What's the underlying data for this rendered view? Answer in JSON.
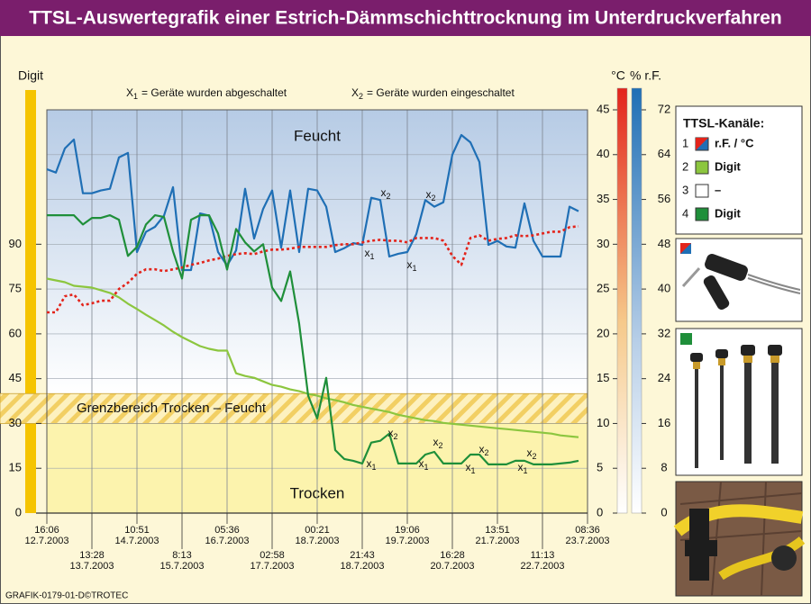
{
  "chart_data": {
    "type": "line",
    "title": "TTSL-Auswertegrafik einer Estrich-Dämmschichttrocknung im Unterdruckverfahren",
    "ylabel": "Digit",
    "y2label": "°C",
    "y3label": "% r.F.",
    "ylim": [
      0,
      135
    ],
    "yticks": [
      0,
      15,
      30,
      45,
      60,
      75,
      90
    ],
    "y2lim": [
      0,
      45
    ],
    "y2ticks": [
      0,
      5,
      10,
      15,
      20,
      25,
      30,
      35,
      40,
      45
    ],
    "y3lim": [
      0,
      72
    ],
    "y3ticks": [
      0,
      8,
      16,
      24,
      32,
      40,
      48,
      56,
      64,
      72
    ],
    "grid": true,
    "xticks": [
      {
        "time": "16:06",
        "date": "12.7.2003"
      },
      {
        "time": "13:28",
        "date": "13.7.2003"
      },
      {
        "time": "10:51",
        "date": "14.7.2003"
      },
      {
        "time": "8:13",
        "date": "15.7.2003"
      },
      {
        "time": "05:36",
        "date": "16.7.2003"
      },
      {
        "time": "02:58",
        "date": "17.7.2003"
      },
      {
        "time": "00:21",
        "date": "18.7.2003"
      },
      {
        "time": "21:43",
        "date": "18.7.2003"
      },
      {
        "time": "19:06",
        "date": "19.7.2003"
      },
      {
        "time": "16:28",
        "date": "20.7.2003"
      },
      {
        "time": "13:51",
        "date": "21.7.2003"
      },
      {
        "time": "11:13",
        "date": "22.7.2003"
      },
      {
        "time": "08:36",
        "date": "23.7.2003"
      }
    ],
    "regions": {
      "upper": "Feucht",
      "lower": "Trocken"
    },
    "band": {
      "label": "Grenzbereich Trocken – Feucht",
      "from": 30,
      "to": 40
    },
    "notes": [
      {
        "symbol": "X",
        "sub": "1",
        "text": "= Geräte wurden abgeschaltet"
      },
      {
        "symbol": "X",
        "sub": "2",
        "text": "= Geräte wurden eingeschaltet"
      }
    ],
    "markers": [
      {
        "text": "x",
        "sub": "2"
      },
      {
        "text": "x",
        "sub": "2"
      },
      {
        "text": "x",
        "sub": "2"
      },
      {
        "text": "x",
        "sub": "2"
      },
      {
        "text": "x",
        "sub": "2"
      },
      {
        "text": "x",
        "sub": "2"
      },
      {
        "text": "x",
        "sub": "1"
      },
      {
        "text": "x",
        "sub": "1"
      },
      {
        "text": "x",
        "sub": "1"
      },
      {
        "text": "x",
        "sub": "1"
      },
      {
        "text": "x",
        "sub": "1"
      },
      {
        "text": "x",
        "sub": "1"
      }
    ],
    "series": [
      {
        "axis": "y3",
        "color": "#1f6fb5",
        "dash": false,
        "values": [
          61.4,
          60.8,
          65.1,
          66.7,
          57.1,
          57.1,
          57.6,
          57.9,
          63.5,
          64.3,
          46.6,
          50.2,
          51.1,
          53.1,
          58.2,
          43.4,
          43.4,
          53.5,
          53.1,
          46.6,
          44.2,
          46.9,
          57.9,
          49.0,
          54.3,
          57.6,
          47.4,
          57.6,
          46.6,
          57.9,
          57.6,
          54.7,
          46.6,
          47.3,
          48.2,
          47.9,
          56.3,
          55.9,
          45.8,
          46.3,
          46.6,
          49.8,
          55.9,
          54.7,
          55.5,
          64.0,
          67.5,
          66.2,
          62.7,
          47.9,
          48.6,
          47.6,
          47.4,
          55.3,
          48.6,
          45.8,
          45.8,
          45.8,
          54.7,
          53.9,
          null
        ]
      },
      {
        "axis": "y2",
        "color": "#e3241b",
        "dash": true,
        "values": [
          22.4,
          22.4,
          24.2,
          24.4,
          23.2,
          23.4,
          23.7,
          23.7,
          25.0,
          25.7,
          26.7,
          27.2,
          27.2,
          27.0,
          27.2,
          27.4,
          27.7,
          27.9,
          28.2,
          28.4,
          28.7,
          28.9,
          29.0,
          28.9,
          29.2,
          29.4,
          29.4,
          29.5,
          29.7,
          29.7,
          29.7,
          29.7,
          29.9,
          30.0,
          30.0,
          30.2,
          30.4,
          30.5,
          30.4,
          30.4,
          30.2,
          30.7,
          30.7,
          30.7,
          30.4,
          28.7,
          27.7,
          30.7,
          31.0,
          30.4,
          30.6,
          30.7,
          31.0,
          30.9,
          31.0,
          31.2,
          31.4,
          31.4,
          31.9,
          32.0,
          null
        ]
      },
      {
        "axis": "y",
        "color": "#8cc63f",
        "dash": false,
        "values": [
          78.5,
          77.9,
          77.3,
          76.1,
          75.8,
          75.5,
          74.6,
          73.7,
          72.2,
          70.1,
          68.3,
          66.4,
          64.6,
          62.8,
          60.7,
          58.9,
          57.4,
          55.9,
          55.0,
          54.4,
          54.4,
          46.8,
          45.9,
          45.3,
          44.1,
          42.9,
          42.3,
          41.4,
          40.8,
          39.9,
          39.3,
          38.4,
          37.8,
          37.1,
          36.2,
          35.6,
          35.0,
          34.4,
          33.8,
          32.9,
          32.3,
          31.7,
          31.1,
          30.8,
          30.2,
          29.9,
          29.6,
          29.3,
          29.0,
          28.7,
          28.4,
          28.1,
          27.8,
          27.5,
          27.2,
          26.9,
          26.6,
          26.0,
          25.7,
          25.4,
          null
        ]
      },
      {
        "axis": "y",
        "color": "#1f8f3a",
        "dash": false,
        "values": [
          99.7,
          99.7,
          99.7,
          99.7,
          96.6,
          98.8,
          98.8,
          99.7,
          98.2,
          86.1,
          89.1,
          96.6,
          99.7,
          99.1,
          87.6,
          78.5,
          98.2,
          99.7,
          99.7,
          93.6,
          81.5,
          95.1,
          90.6,
          87.6,
          90.0,
          75.5,
          71.0,
          80.9,
          63.4,
          39.3,
          31.7,
          45.3,
          21.1,
          18.1,
          17.5,
          16.6,
          23.6,
          24.2,
          26.6,
          16.6,
          16.6,
          16.6,
          19.6,
          20.5,
          16.6,
          16.6,
          16.6,
          19.6,
          19.6,
          16.3,
          16.3,
          16.3,
          17.5,
          17.5,
          16.3,
          16.3,
          16.3,
          16.6,
          16.9,
          17.5,
          null
        ]
      }
    ],
    "channels": {
      "title": "TTSL-Kanäle:",
      "items": [
        {
          "num": "1",
          "label": "r.F. / °C"
        },
        {
          "num": "2",
          "label": "Digit"
        },
        {
          "num": "3",
          "label": "–"
        },
        {
          "num": "4",
          "label": "Digit"
        }
      ]
    }
  },
  "footer": "GRAFIK-0179-01-D©TROTEC"
}
